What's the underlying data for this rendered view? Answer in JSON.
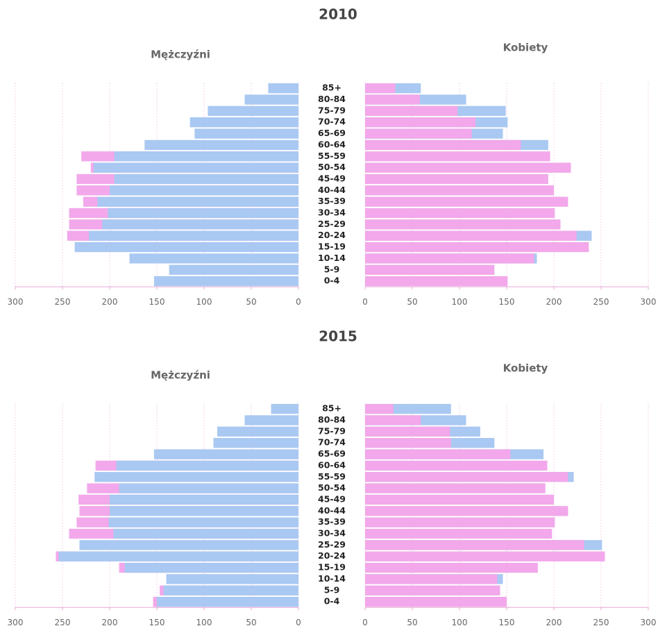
{
  "chart_data": [
    {
      "type": "pyramid",
      "title": "2010",
      "categories": [
        "85+",
        "80-84",
        "75-79",
        "70-74",
        "65-69",
        "60-64",
        "55-59",
        "50-54",
        "45-49",
        "40-44",
        "35-39",
        "30-34",
        "25-29",
        "20-24",
        "15-19",
        "10-14",
        "5-9",
        "0-4"
      ],
      "xlim": [
        0,
        300
      ],
      "xticks": [
        0,
        50,
        100,
        150,
        200,
        250,
        300
      ],
      "grid": true,
      "left": {
        "title": "Mężczyźni",
        "series": [
          {
            "color": "#f2a8ea",
            "values": [
              null,
              null,
              null,
              null,
              null,
              null,
              230,
              220,
              235,
              235,
              228,
              243,
              243,
              245,
              null,
              null,
              null,
              null
            ]
          },
          {
            "color": "#a9c8f2",
            "values": [
              32,
              57,
              96,
              115,
              110,
              163,
              195,
              217,
              195,
              200,
              213,
              202,
              208,
              222,
              237,
              179,
              137,
              153
            ]
          }
        ]
      },
      "right": {
        "title": "Kobiety",
        "series": [
          {
            "color": "#a9c8f2",
            "values": [
              59,
              107,
              149,
              151,
              146,
              194,
              null,
              null,
              null,
              null,
              null,
              null,
              null,
              240,
              null,
              182,
              null,
              null
            ]
          },
          {
            "color": "#f2a8ea",
            "values": [
              32,
              58,
              98,
              117,
              113,
              165,
              196,
              218,
              194,
              200,
              215,
              201,
              207,
              224,
              237,
              179,
              137,
              151
            ]
          }
        ]
      }
    },
    {
      "type": "pyramid",
      "title": "2015",
      "categories": [
        "85+",
        "80-84",
        "75-79",
        "70-74",
        "65-69",
        "60-64",
        "55-59",
        "50-54",
        "45-49",
        "40-44",
        "35-39",
        "30-34",
        "25-29",
        "20-24",
        "15-19",
        "10-14",
        "5-9",
        "0-4"
      ],
      "xlim": [
        0,
        300
      ],
      "xticks": [
        0,
        50,
        100,
        150,
        200,
        250,
        300
      ],
      "grid": true,
      "left": {
        "title": "Mężczyźni",
        "series": [
          {
            "color": "#f2a8ea",
            "values": [
              null,
              null,
              null,
              null,
              null,
              215,
              null,
              224,
              233,
              232,
              235,
              243,
              null,
              257,
              190,
              null,
              147,
              154
            ]
          },
          {
            "color": "#a9c8f2",
            "values": [
              29,
              57,
              86,
              90,
              153,
              193,
              216,
              190,
              200,
              200,
              201,
              196,
              232,
              254,
              184,
              140,
              143,
              150
            ]
          }
        ]
      },
      "right": {
        "title": "Kobiety",
        "series": [
          {
            "color": "#a9c8f2",
            "values": [
              91,
              107,
              122,
              137,
              189,
              null,
              221,
              null,
              null,
              null,
              null,
              null,
              251,
              null,
              null,
              146,
              null,
              null
            ]
          },
          {
            "color": "#f2a8ea",
            "values": [
              30,
              59,
              90,
              91,
              154,
              193,
              215,
              191,
              200,
              215,
              201,
              198,
              232,
              254,
              183,
              140,
              143,
              150
            ]
          }
        ]
      }
    }
  ]
}
